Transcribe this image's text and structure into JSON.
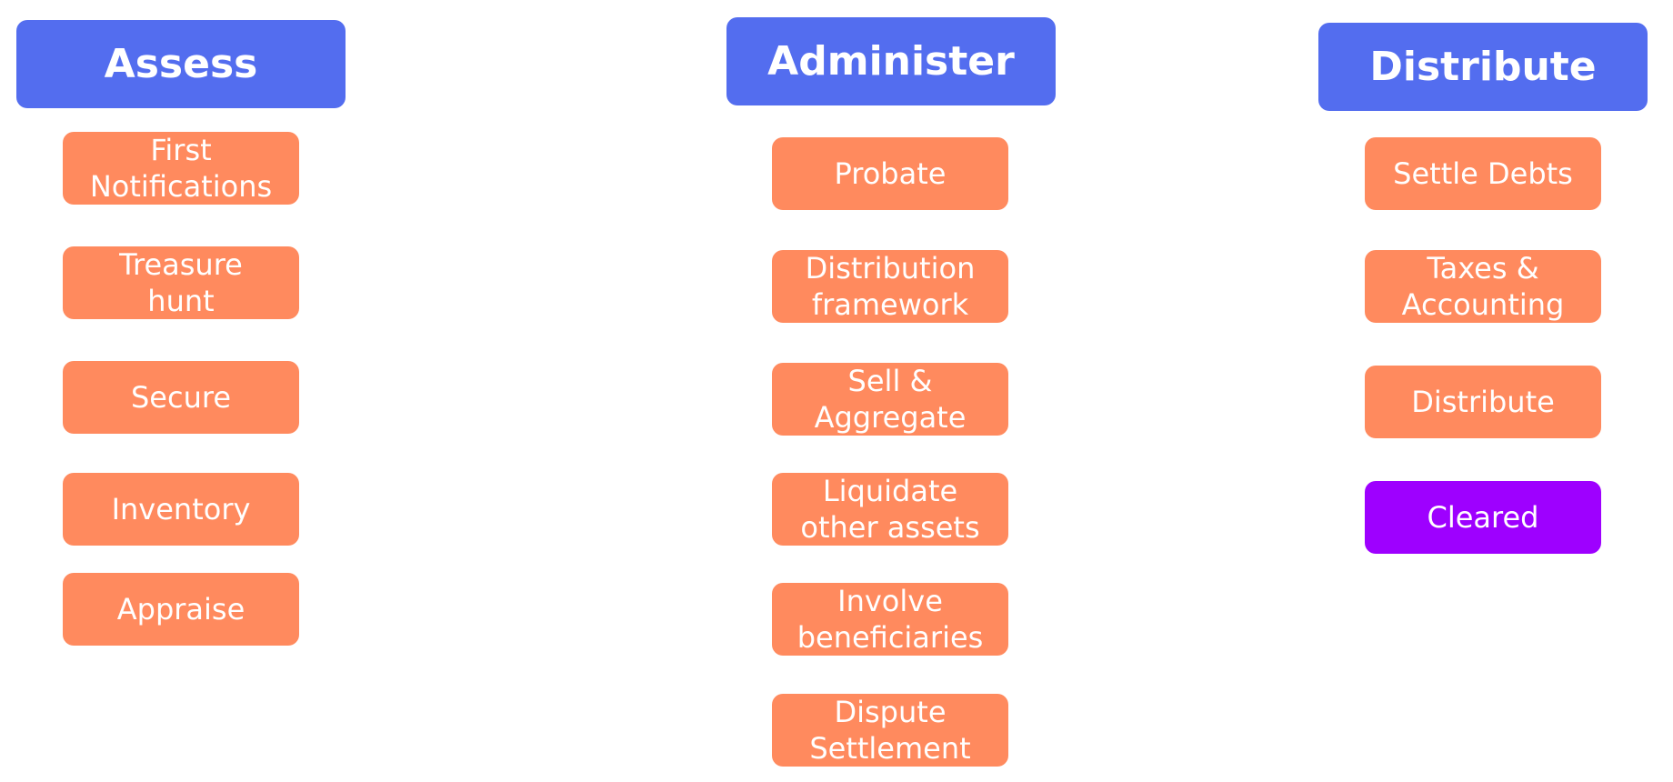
{
  "columns": [
    {
      "title": "Assess",
      "steps": [
        "First\nNotifications",
        "Treasure\nhunt",
        "Secure",
        "Inventory",
        "Appraise"
      ]
    },
    {
      "title": "Administer",
      "steps": [
        "Probate",
        "Distribution\nframework",
        "Sell &\nAggregate",
        "Liquidate\nother assets",
        "Involve\nbeneficiaries",
        "Dispute\nSettlement"
      ]
    },
    {
      "title": "Distribute",
      "steps": [
        "Settle Debts",
        "Taxes &\nAccounting",
        "Distribute",
        "Cleared"
      ]
    }
  ],
  "colors": {
    "header": "#536DEF",
    "step": "#FF8A5E",
    "final_step": "#9E00FF",
    "text": "#FFFFFF"
  }
}
